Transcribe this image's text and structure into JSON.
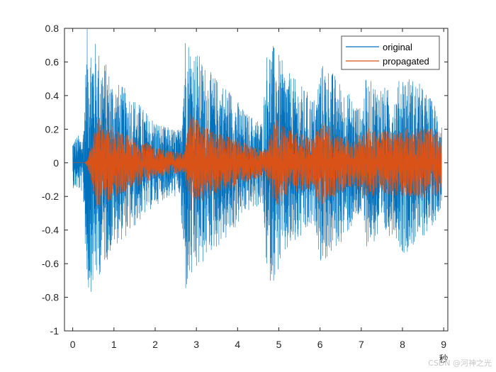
{
  "chart_data": {
    "type": "line",
    "title": "",
    "xlabel": "秒",
    "ylabel": "",
    "xlim": [
      -0.2,
      9.1
    ],
    "ylim": [
      -1,
      0.8
    ],
    "xticks": [
      0,
      1,
      2,
      3,
      4,
      5,
      6,
      7,
      8,
      9
    ],
    "yticks": [
      0.8,
      0.6,
      0.4,
      0.2,
      0,
      -0.2,
      -0.4,
      -0.6,
      -0.8,
      -1
    ],
    "ytick_labels": [
      "0.8",
      "0.6",
      "0.4",
      "0.2",
      "0",
      "-0.2",
      "-0.4",
      "-0.6",
      "-0.8",
      "-1"
    ],
    "grid": false,
    "legend_position": "top-right",
    "series": [
      {
        "name": "original",
        "color": "#0072BD",
        "envelope_t": [
          0,
          0.25,
          0.35,
          0.5,
          0.7,
          1.0,
          1.4,
          1.8,
          2.2,
          2.6,
          2.72,
          2.9,
          3.3,
          3.8,
          4.2,
          4.6,
          4.72,
          4.9,
          5.2,
          5.6,
          5.9,
          6.0,
          6.2,
          6.6,
          7.0,
          7.1,
          7.4,
          7.8,
          8.0,
          8.4,
          8.8,
          8.95
        ],
        "envelope_amp": [
          0.15,
          0.18,
          0.8,
          0.75,
          0.65,
          0.5,
          0.42,
          0.3,
          0.22,
          0.2,
          0.8,
          0.72,
          0.55,
          0.45,
          0.3,
          0.25,
          0.72,
          0.7,
          0.55,
          0.45,
          0.38,
          0.6,
          0.58,
          0.45,
          0.32,
          0.5,
          0.48,
          0.42,
          0.55,
          0.48,
          0.35,
          0.25
        ]
      },
      {
        "name": "propagated",
        "color": "#D95319",
        "envelope_t": [
          0,
          0.3,
          0.4,
          0.6,
          0.8,
          1.2,
          1.6,
          2.0,
          2.4,
          2.7,
          2.85,
          3.2,
          3.6,
          4.0,
          4.4,
          4.7,
          4.9,
          5.3,
          5.8,
          6.0,
          6.4,
          6.8,
          7.1,
          7.5,
          8.0,
          8.5,
          8.95
        ],
        "envelope_amp": [
          0.0,
          0.0,
          0.06,
          0.28,
          0.25,
          0.18,
          0.14,
          0.1,
          0.07,
          0.06,
          0.3,
          0.22,
          0.17,
          0.14,
          0.1,
          0.08,
          0.27,
          0.2,
          0.15,
          0.26,
          0.2,
          0.14,
          0.22,
          0.19,
          0.2,
          0.22,
          0.18
        ]
      }
    ]
  },
  "watermark": "CSDN @河神之光"
}
